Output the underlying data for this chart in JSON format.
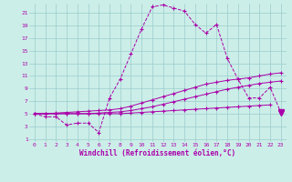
{
  "bg_color": "#cceee8",
  "line_color": "#aa00aa",
  "grid_color": "#99cccc",
  "xlabel": "Windchill (Refroidissement éolien,°C)",
  "xlabel_color": "#aa00aa",
  "yticks": [
    1,
    3,
    5,
    7,
    9,
    11,
    13,
    15,
    17,
    19,
    21
  ],
  "xticks": [
    0,
    1,
    2,
    3,
    4,
    5,
    6,
    7,
    8,
    9,
    10,
    11,
    12,
    13,
    14,
    15,
    16,
    17,
    18,
    19,
    20,
    21,
    22,
    23
  ],
  "xlim": [
    -0.5,
    23.5
  ],
  "ylim": [
    0.5,
    22.5
  ],
  "series1_x": [
    0,
    1,
    2,
    3,
    4,
    5,
    6,
    7,
    8,
    9,
    10,
    11,
    12,
    13,
    14,
    15,
    16,
    17,
    18,
    19,
    20,
    21,
    22,
    23
  ],
  "series1_y": [
    5.0,
    4.5,
    4.5,
    3.2,
    3.5,
    3.5,
    2.0,
    7.5,
    10.5,
    14.5,
    18.5,
    22.0,
    22.3,
    21.8,
    21.3,
    19.2,
    17.8,
    19.2,
    13.8,
    10.5,
    7.5,
    7.5,
    9.2,
    5.2
  ],
  "series2_x": [
    0,
    1,
    2,
    3,
    4,
    5,
    6,
    7,
    8,
    9,
    10,
    11,
    12,
    13,
    14,
    15,
    16,
    17,
    18,
    19,
    20,
    21,
    22,
    23
  ],
  "series2_y": [
    5.0,
    5.0,
    5.1,
    5.2,
    5.3,
    5.4,
    5.5,
    5.6,
    5.8,
    6.2,
    6.7,
    7.2,
    7.7,
    8.2,
    8.7,
    9.2,
    9.7,
    10.0,
    10.3,
    10.5,
    10.7,
    11.0,
    11.3,
    11.5
  ],
  "series3_x": [
    0,
    1,
    2,
    3,
    4,
    5,
    6,
    7,
    8,
    9,
    10,
    11,
    12,
    13,
    14,
    15,
    16,
    17,
    18,
    19,
    20,
    21,
    22,
    23
  ],
  "series3_y": [
    5.0,
    5.0,
    5.0,
    5.0,
    5.0,
    5.0,
    5.1,
    5.2,
    5.3,
    5.5,
    5.8,
    6.1,
    6.5,
    6.9,
    7.3,
    7.7,
    8.1,
    8.5,
    8.9,
    9.2,
    9.5,
    9.8,
    10.0,
    10.2
  ],
  "series4_x": [
    0,
    1,
    2,
    3,
    4,
    5,
    6,
    7,
    8,
    9,
    10,
    11,
    12,
    13,
    14,
    15,
    16,
    17,
    18,
    19,
    20,
    21,
    22,
    23
  ],
  "series4_y": [
    5.0,
    5.0,
    5.0,
    5.0,
    5.0,
    5.0,
    5.0,
    5.0,
    5.0,
    5.1,
    5.2,
    5.3,
    5.4,
    5.5,
    5.6,
    5.7,
    5.8,
    5.9,
    6.0,
    6.1,
    6.2,
    6.3,
    6.4,
    5.3
  ]
}
